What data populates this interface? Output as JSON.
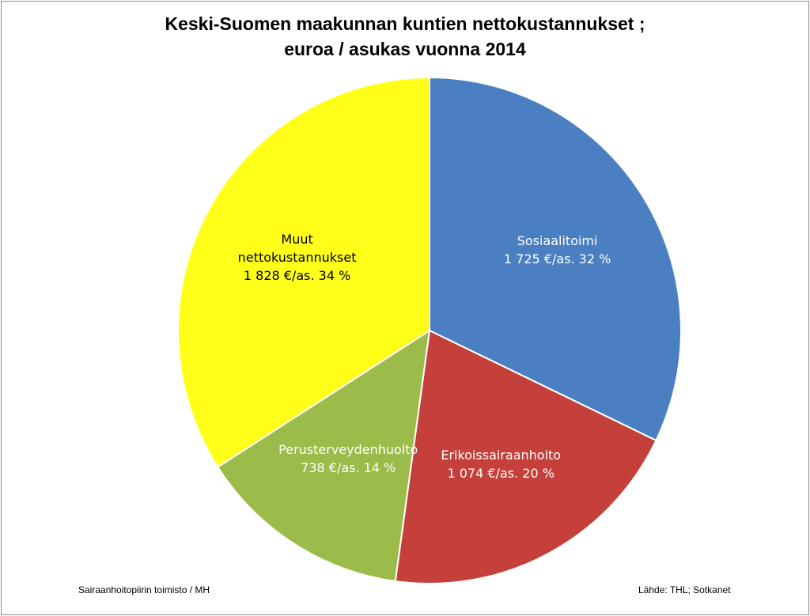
{
  "chart_data": {
    "type": "pie",
    "title": {
      "line1": "Keski-Suomen maakunnan kuntien nettokustannukset ;",
      "line2": "euroa / asukas  vuonna 2014"
    },
    "slices": [
      {
        "name": "Sosiaalitoimi",
        "value": 1725,
        "percent": 32,
        "value_label": "1 725 €/as.  32 %",
        "color": "#4a7fc1",
        "text_color": "#ffffff"
      },
      {
        "name": "Erikoissairaanhoito",
        "value": 1074,
        "percent": 20,
        "value_label": "1 074 €/as.  20 %",
        "color": "#c6403b",
        "text_color": "#ffffff"
      },
      {
        "name": "Perusterveydenhuolto",
        "value": 738,
        "percent": 14,
        "value_label": "738 €/as.  14 %",
        "color": "#9bbb4a",
        "text_color": "#ffffff"
      },
      {
        "name": "Muut nettokustannukset",
        "name_lines": [
          "Muut",
          "nettokustannukset"
        ],
        "value": 1828,
        "percent": 34,
        "value_label": "1 828 €/as.  34 %",
        "color": "#ffff1a",
        "text_color": "#000000"
      }
    ],
    "start_angle": "12 o'clock, clockwise"
  },
  "footer": {
    "left": "Sairaanhoitopiirin toimisto / MH",
    "right": "Lähde: THL; Sotkanet"
  }
}
